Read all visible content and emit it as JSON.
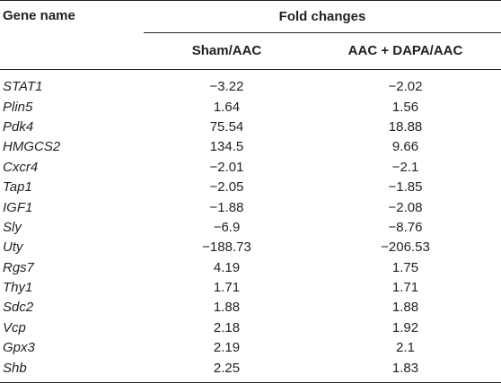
{
  "header": {
    "gene_column": "Gene name",
    "group_label": "Fold changes",
    "sub_columns": [
      "Sham/AAC",
      "AAC + DAPA/AAC"
    ]
  },
  "rows": [
    {
      "gene": "STAT1",
      "sham_aac": "−3.22",
      "dapa_aac": "−2.02"
    },
    {
      "gene": "Plin5",
      "sham_aac": "1.64",
      "dapa_aac": "1.56"
    },
    {
      "gene": "Pdk4",
      "sham_aac": "75.54",
      "dapa_aac": "18.88"
    },
    {
      "gene": "HMGCS2",
      "sham_aac": "134.5",
      "dapa_aac": "9.66"
    },
    {
      "gene": "Cxcr4",
      "sham_aac": "−2.01",
      "dapa_aac": "−2.1"
    },
    {
      "gene": "Tap1",
      "sham_aac": "−2.05",
      "dapa_aac": "−1.85"
    },
    {
      "gene": "IGF1",
      "sham_aac": "−1.88",
      "dapa_aac": "−2.08"
    },
    {
      "gene": "Sly",
      "sham_aac": "−6.9",
      "dapa_aac": "−8.76"
    },
    {
      "gene": "Uty",
      "sham_aac": "−188.73",
      "dapa_aac": "−206.53"
    },
    {
      "gene": "Rgs7",
      "sham_aac": "4.19",
      "dapa_aac": "1.75"
    },
    {
      "gene": "Thy1",
      "sham_aac": "1.71",
      "dapa_aac": "1.71"
    },
    {
      "gene": "Sdc2",
      "sham_aac": "1.88",
      "dapa_aac": "1.88"
    },
    {
      "gene": "Vcp",
      "sham_aac": "2.18",
      "dapa_aac": "1.92"
    },
    {
      "gene": "Gpx3",
      "sham_aac": "2.19",
      "dapa_aac": "2.1"
    },
    {
      "gene": "Shb",
      "sham_aac": "2.25",
      "dapa_aac": "1.83"
    }
  ]
}
